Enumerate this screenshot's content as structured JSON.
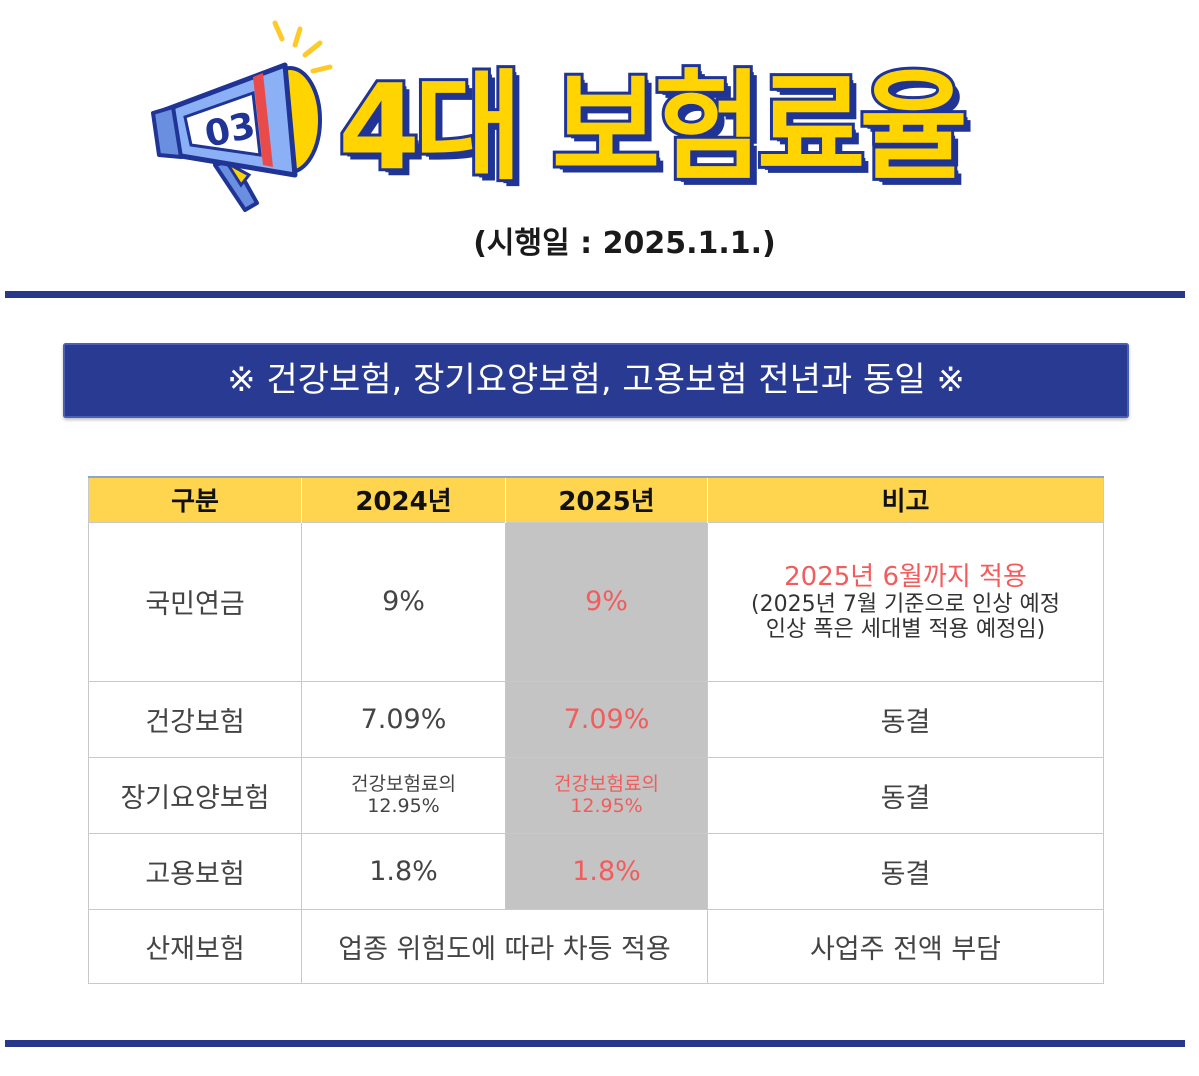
{
  "header": {
    "badge_number": "03",
    "title": "4대 보험료율",
    "effective_date": "(시행일 : 2025.1.1.)"
  },
  "banner": {
    "text": "※ 건강보험, 장기요양보험, 고용보험 전년과 동일 ※"
  },
  "table": {
    "headers": [
      "구분",
      "2024년",
      "2025년",
      "비고"
    ],
    "rows": [
      {
        "category": "국민연금",
        "y2024": "9%",
        "y2025": "9%",
        "note_highlight": "2025년 6월까지 적용",
        "note_line1": "(2025년 7월 기준으로 인상 예정",
        "note_line2": "인상 폭은 세대별 적용 예정임)"
      },
      {
        "category": "건강보험",
        "y2024": "7.09%",
        "y2025": "7.09%",
        "note": "동결"
      },
      {
        "category": "장기요양보험",
        "y2024_line1": "건강보험료의",
        "y2024_line2": "12.95%",
        "y2025_line1": "건강보험료의",
        "y2025_line2": "12.95%",
        "note": "동결"
      },
      {
        "category": "고용보험",
        "y2024": "1.8%",
        "y2025": "1.8%",
        "note": "동결"
      },
      {
        "category": "산재보험",
        "rate_merged": "업종 위험도에 따라 차등 적용",
        "note": "사업주 전액 부담"
      }
    ]
  },
  "colors": {
    "navy": "#283a91",
    "yellow": "#FFD400",
    "header_yellow": "#FFD54F",
    "highlight_gray": "#c4c4c4",
    "highlight_red": "#f25c5c"
  }
}
